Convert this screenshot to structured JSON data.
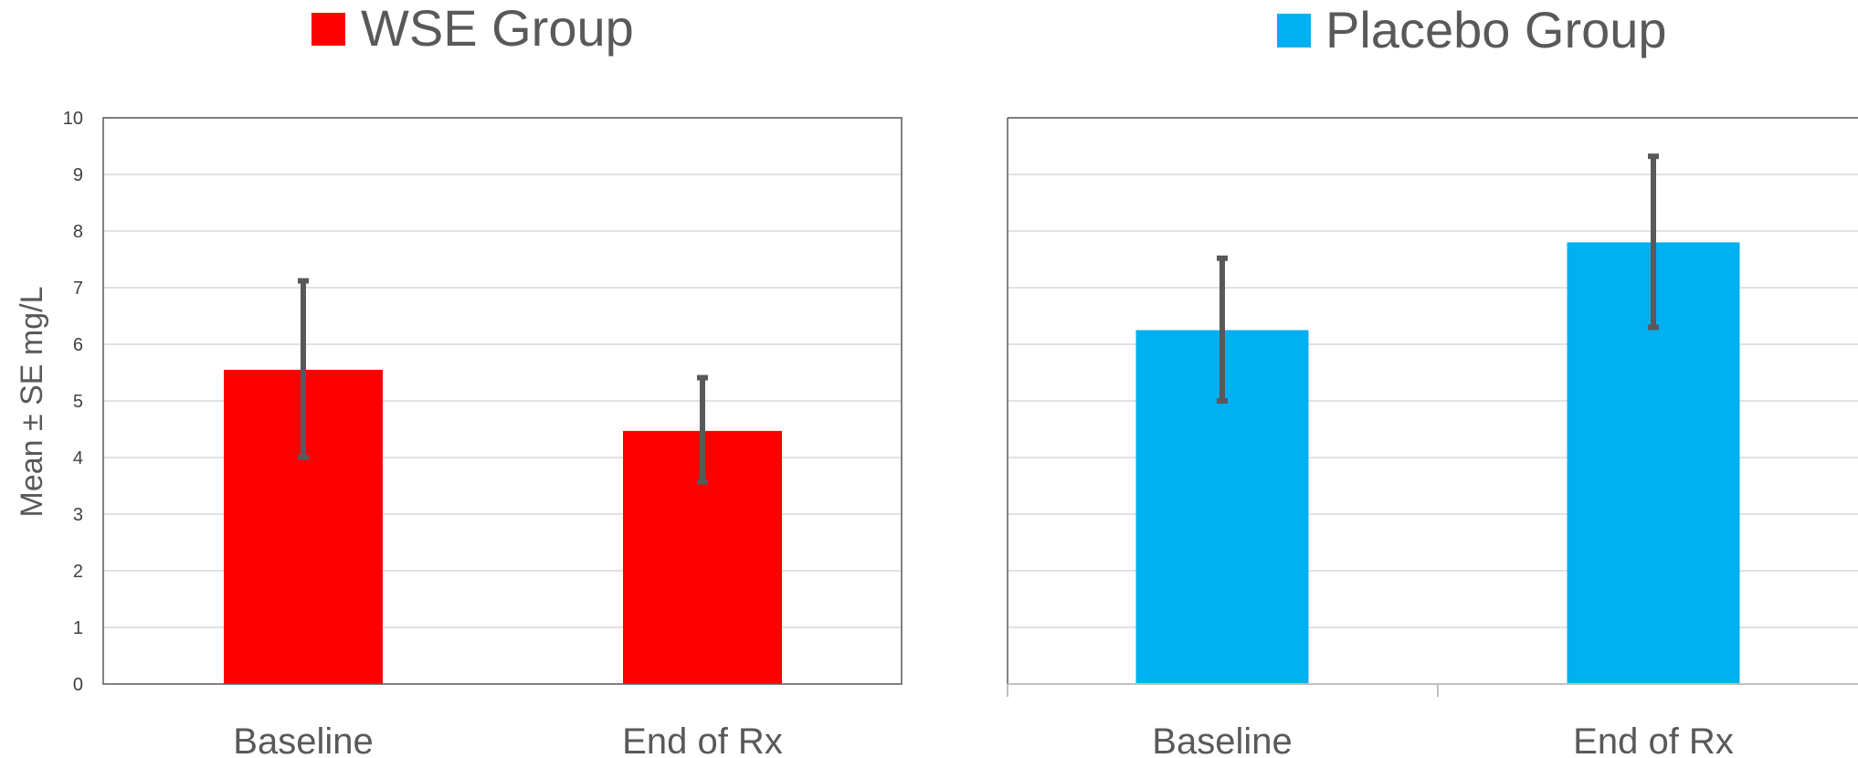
{
  "chart_data": [
    {
      "type": "bar",
      "legend": "WSE Group",
      "color": "#FF0000",
      "categories": [
        "Baseline",
        "End of Rx"
      ],
      "values": [
        5.55,
        4.47
      ],
      "error_lower": [
        4.0,
        3.57
      ],
      "error_upper": [
        7.12,
        5.41
      ],
      "ylabel": "Mean ± SE mg/L",
      "ylim": [
        0,
        10
      ],
      "yticks": [
        0,
        1,
        2,
        3,
        4,
        5,
        6,
        7,
        8,
        9,
        10
      ],
      "grid": true,
      "legend_position": "top"
    },
    {
      "type": "bar",
      "legend": "Placebo Group",
      "color": "#00B0F0",
      "categories": [
        "Baseline",
        "End of Rx"
      ],
      "values": [
        6.25,
        7.8
      ],
      "error_lower": [
        5.0,
        6.3
      ],
      "error_upper": [
        7.52,
        9.32
      ],
      "ylim": [
        0,
        10
      ],
      "grid": true,
      "legend_position": "top"
    }
  ],
  "style": {
    "error_bar_color": "#595959",
    "grid_color": "#D9D9D9",
    "axis_color": "#595959"
  }
}
